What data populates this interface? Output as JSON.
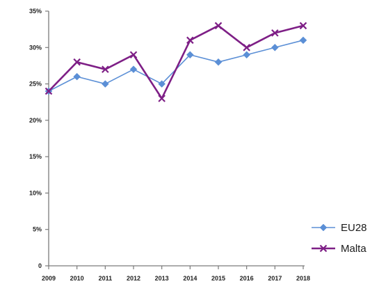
{
  "chart_data": {
    "type": "line",
    "title": "",
    "xlabel": "",
    "ylabel": "",
    "x": [
      "2009",
      "2010",
      "2011",
      "2012",
      "2013",
      "2014",
      "2015",
      "2016",
      "2017",
      "2018"
    ],
    "ylim": [
      0,
      35
    ],
    "yticks": [
      0,
      5,
      10,
      15,
      20,
      25,
      30,
      35
    ],
    "ytick_labels": [
      "0",
      "5%",
      "10%",
      "15%",
      "20%",
      "25%",
      "30%",
      "35%"
    ],
    "grid": false,
    "legend_position": "bottom-right",
    "series": [
      {
        "name": "EU28",
        "values": [
          24,
          26,
          25,
          27,
          25,
          29,
          28,
          29,
          30,
          31
        ],
        "color": "#5b8fd6",
        "marker": "diamond"
      },
      {
        "name": "Malta",
        "values": [
          24,
          28,
          27,
          29,
          23,
          31,
          33,
          30,
          32,
          33
        ],
        "color": "#7e1f86",
        "marker": "x"
      }
    ]
  }
}
